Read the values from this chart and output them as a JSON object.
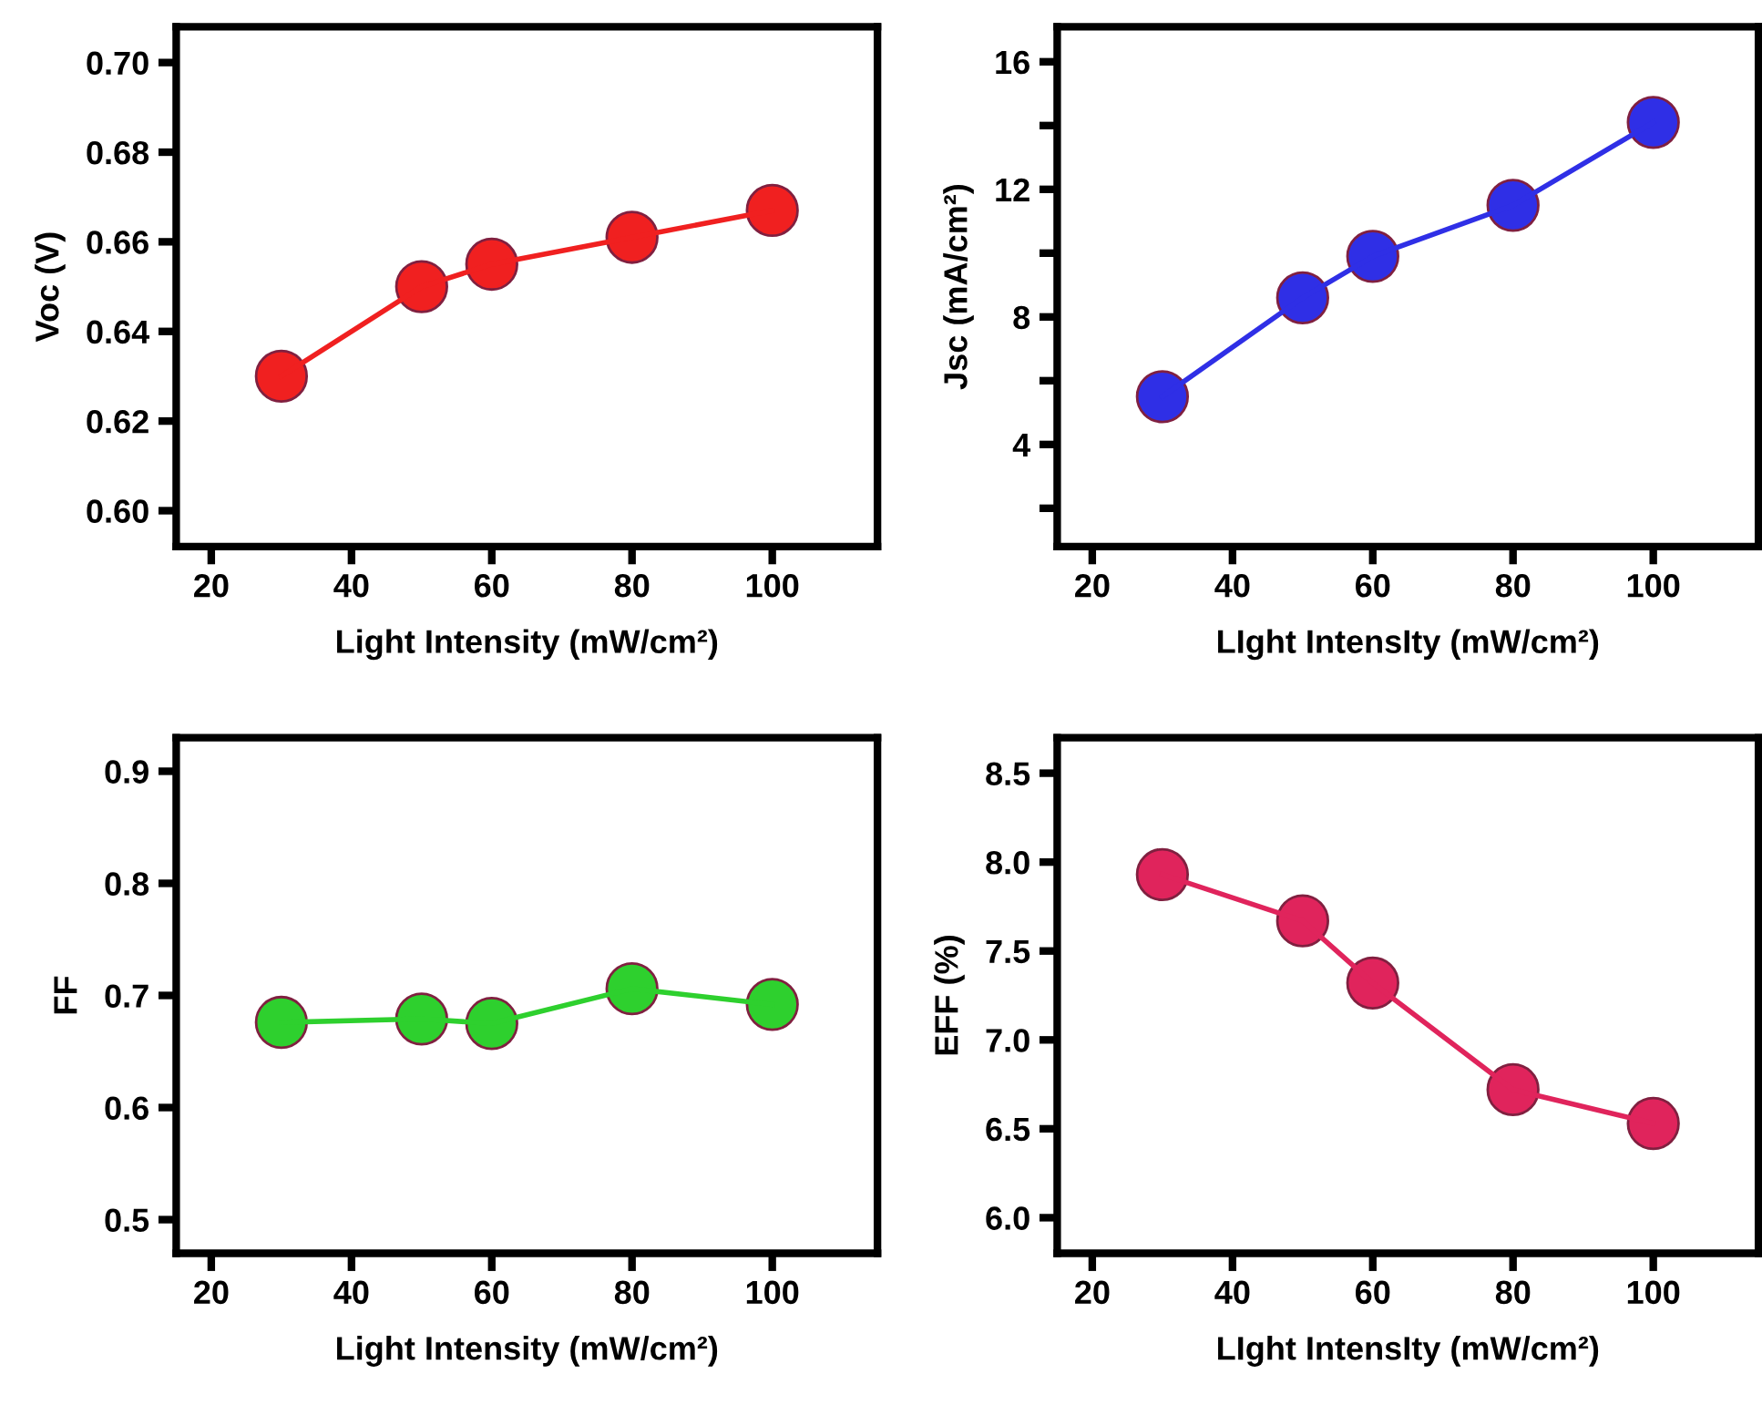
{
  "chart_data": [
    {
      "type": "line",
      "xlabel": "Light Intensity (mW/cm²)",
      "ylabel": "Voc (V)",
      "x": [
        30,
        50,
        60,
        80,
        100
      ],
      "series": [
        {
          "color": "#f02020",
          "values": [
            0.63,
            0.65,
            0.655,
            0.661,
            0.667
          ]
        }
      ],
      "xlim": [
        15,
        115
      ],
      "xticks": [
        20,
        40,
        60,
        80,
        100
      ],
      "ylim": [
        0.592,
        0.708
      ],
      "yticks": [
        {
          "value": 0.6,
          "label": "0.60"
        },
        {
          "value": 0.62,
          "label": "0.62"
        },
        {
          "value": 0.64,
          "label": "0.64"
        },
        {
          "value": 0.66,
          "label": "0.66"
        },
        {
          "value": 0.68,
          "label": "0.68"
        },
        {
          "value": 0.7,
          "label": "0.70"
        }
      ],
      "marker": "circle",
      "line_style": "solid",
      "grid": false,
      "legend": false
    },
    {
      "type": "line",
      "xlabel": "LIght IntensIty (mW/cm²)",
      "ylabel": "Jsc (mA/cm²)",
      "x": [
        30,
        50,
        60,
        80,
        100
      ],
      "series": [
        {
          "color": "#2f2fe6",
          "values": [
            5.5,
            8.6,
            9.9,
            11.5,
            14.1
          ]
        }
      ],
      "xlim": [
        15,
        115
      ],
      "xticks": [
        20,
        40,
        60,
        80,
        100
      ],
      "ylim": [
        0.8,
        17.1
      ],
      "yticks": [
        {
          "value": 2,
          "label": null
        },
        4,
        {
          "value": 6,
          "label": null
        },
        8,
        {
          "value": 10,
          "label": null
        },
        12,
        {
          "value": 14,
          "label": null
        },
        16
      ],
      "marker": "circle",
      "line_style": "solid",
      "grid": false,
      "legend": false
    },
    {
      "type": "line",
      "xlabel": "Light Intensity (mW/cm²)",
      "ylabel": "FF",
      "x": [
        30,
        50,
        60,
        80,
        100
      ],
      "series": [
        {
          "color": "#2ed02e",
          "values": [
            0.676,
            0.679,
            0.675,
            0.706,
            0.692
          ]
        }
      ],
      "xlim": [
        15,
        115
      ],
      "xticks": [
        20,
        40,
        60,
        80,
        100
      ],
      "ylim": [
        0.47,
        0.93
      ],
      "yticks": [
        0.5,
        0.6,
        0.7,
        0.8,
        0.9
      ],
      "marker": "circle",
      "line_style": "solid",
      "grid": false,
      "legend": false
    },
    {
      "type": "line",
      "xlabel": "LIght IntensIty (mW/cm²)",
      "ylabel": "EFF (%)",
      "x": [
        30,
        50,
        60,
        80,
        100
      ],
      "series": [
        {
          "color": "#e0245c",
          "values": [
            7.93,
            7.67,
            7.32,
            6.72,
            6.53
          ]
        }
      ],
      "xlim": [
        15,
        115
      ],
      "xticks": [
        20,
        40,
        60,
        80,
        100
      ],
      "ylim": [
        5.8,
        8.7
      ],
      "yticks": [
        {
          "value": 6,
          "label": "6.0"
        },
        6.5,
        {
          "value": 7,
          "label": "7.0"
        },
        7.5,
        {
          "value": 8,
          "label": "8.0"
        },
        8.5
      ],
      "marker": "circle",
      "line_style": "solid",
      "grid": false,
      "legend": false
    }
  ]
}
